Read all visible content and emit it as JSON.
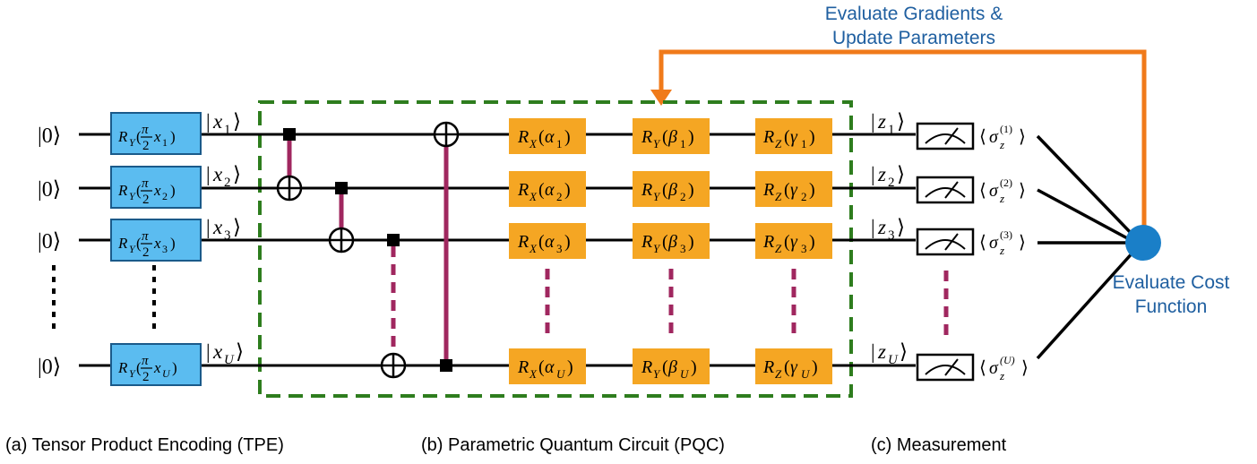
{
  "colors": {
    "wire": "#000000",
    "encoding_gate_fill": "#5bbcf0",
    "encoding_gate_stroke": "#1a5a8a",
    "pqc_gate_fill": "#f5a623",
    "cnot_link": "#a0275f",
    "dashed_frame": "#2e7d1e",
    "feedback_arrow": "#f07a1a",
    "cost_node": "#1a7fc8",
    "label_blue": "#1f5fa0"
  },
  "feedback": {
    "line1": "Evaluate Gradients &",
    "line2": "Update Parameters"
  },
  "cost": {
    "line1": "Evaluate Cost",
    "line2": "Function"
  },
  "qubits": [
    {
      "init": "|0⟩",
      "state_sub": "1",
      "enc_sub": "1",
      "rx_sub": "1",
      "ry_sub": "1",
      "rz_sub": "1",
      "z_sub": "1",
      "sigma_sup": "(1)"
    },
    {
      "init": "|0⟩",
      "state_sub": "2",
      "enc_sub": "2",
      "rx_sub": "2",
      "ry_sub": "2",
      "rz_sub": "2",
      "z_sub": "2",
      "sigma_sup": "(2)"
    },
    {
      "init": "|0⟩",
      "state_sub": "3",
      "enc_sub": "3",
      "rx_sub": "3",
      "ry_sub": "3",
      "rz_sub": "3",
      "z_sub": "3",
      "sigma_sup": "(3)"
    },
    {
      "init": "|0⟩",
      "state_sub": "U",
      "enc_sub": "U",
      "rx_sub": "U",
      "ry_sub": "U",
      "rz_sub": "U",
      "z_sub": "U",
      "sigma_sup": "(U)"
    }
  ],
  "symbols": {
    "rx": "R",
    "rx_sub": "X",
    "ry_sub": "Y",
    "rz_sub": "Z",
    "alpha": "α",
    "beta": "β",
    "gamma": "γ",
    "pi": "π",
    "two": "2",
    "x": "x",
    "z": "z",
    "sigma": "σ"
  },
  "captions": {
    "a": "(a) Tensor Product Encoding (TPE)",
    "b": "(b) Parametric Quantum Circuit (PQC)",
    "c": "(c) Measurement"
  }
}
